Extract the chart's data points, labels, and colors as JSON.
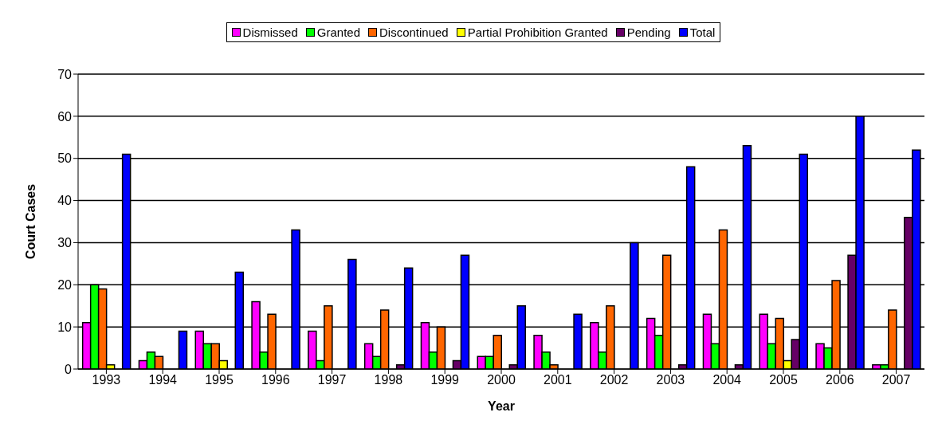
{
  "chart_data": {
    "type": "bar",
    "xlabel": "Year",
    "ylabel": "Court Cases",
    "categories": [
      "1993",
      "1994",
      "1995",
      "1996",
      "1997",
      "1998",
      "1999",
      "2000",
      "2001",
      "2002",
      "2003",
      "2004",
      "2005",
      "2006",
      "2007"
    ],
    "series": [
      {
        "name": "Dismissed",
        "color": "#ff00ff",
        "values": [
          11,
          2,
          9,
          16,
          9,
          6,
          11,
          3,
          8,
          11,
          12,
          13,
          13,
          6,
          1
        ]
      },
      {
        "name": "Granted",
        "color": "#00ff00",
        "values": [
          20,
          4,
          6,
          4,
          2,
          3,
          4,
          3,
          4,
          4,
          8,
          6,
          6,
          5,
          1
        ]
      },
      {
        "name": "Discontinued",
        "color": "#ff6600",
        "values": [
          19,
          3,
          6,
          13,
          15,
          14,
          10,
          8,
          1,
          15,
          27,
          33,
          12,
          21,
          14
        ]
      },
      {
        "name": "Partial Prohibition Granted",
        "color": "#ffff00",
        "values": [
          1,
          0,
          2,
          0,
          0,
          0,
          0,
          0,
          0,
          0,
          0,
          0,
          2,
          0,
          0
        ]
      },
      {
        "name": "Pending",
        "color": "#660066",
        "values": [
          0,
          0,
          0,
          0,
          0,
          1,
          2,
          1,
          0,
          0,
          1,
          1,
          7,
          27,
          36
        ]
      },
      {
        "name": "Total",
        "color": "#0000ff",
        "values": [
          51,
          9,
          23,
          33,
          26,
          24,
          27,
          15,
          13,
          30,
          48,
          53,
          51,
          60,
          52
        ]
      }
    ],
    "ylim": [
      0,
      70
    ],
    "yticks": [
      0,
      10,
      20,
      30,
      40,
      50,
      60,
      70
    ],
    "grid": "y",
    "legend": "top"
  }
}
